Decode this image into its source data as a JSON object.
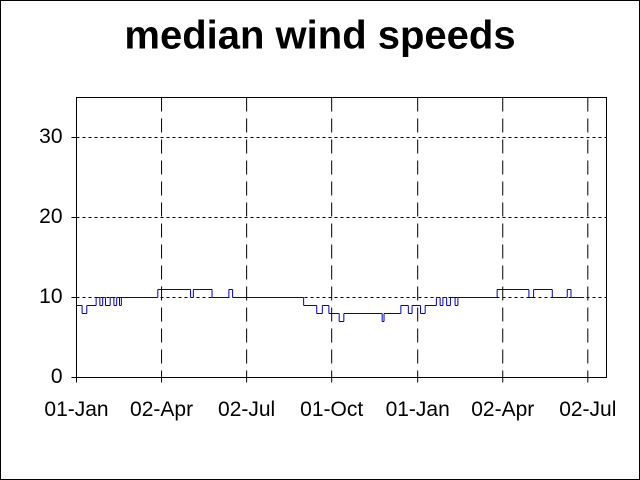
{
  "chart_data": {
    "type": "step",
    "title": "median wind speeds",
    "x": [
      0,
      6,
      11,
      21,
      25,
      28,
      31,
      36,
      40,
      43,
      46,
      48,
      87,
      122,
      125,
      145,
      163,
      167,
      243,
      257,
      263,
      270,
      281,
      286,
      327,
      329,
      347,
      355,
      359,
      368,
      373,
      385,
      389,
      392,
      396,
      400,
      405,
      408,
      450,
      484,
      489,
      509,
      525,
      529,
      543
    ],
    "series": [
      {
        "color": "#0000c0",
        "values": [
          9,
          8,
          9,
          10,
          9,
          10,
          9,
          10,
          9,
          10,
          9,
          10,
          11,
          10,
          11,
          10,
          11,
          10,
          9,
          8,
          9,
          8,
          7,
          8,
          7,
          8,
          9,
          8,
          9,
          8,
          9,
          10,
          9,
          10,
          9,
          10,
          9,
          10,
          11,
          10,
          11,
          10,
          11,
          10,
          10
        ]
      }
    ],
    "xlim": [
      0,
      567
    ],
    "xticks": [
      {
        "value": 0,
        "label": "01-Jan"
      },
      {
        "value": 91,
        "label": "02-Apr"
      },
      {
        "value": 182,
        "label": "02-Jul"
      },
      {
        "value": 273,
        "label": "01-Oct"
      },
      {
        "value": 365,
        "label": "01-Jan"
      },
      {
        "value": 456,
        "label": "02-Apr"
      },
      {
        "value": 547,
        "label": "02-Jul"
      }
    ],
    "ylim": [
      0,
      35
    ],
    "yticks": [
      0,
      10,
      20,
      30
    ],
    "grid": true
  }
}
